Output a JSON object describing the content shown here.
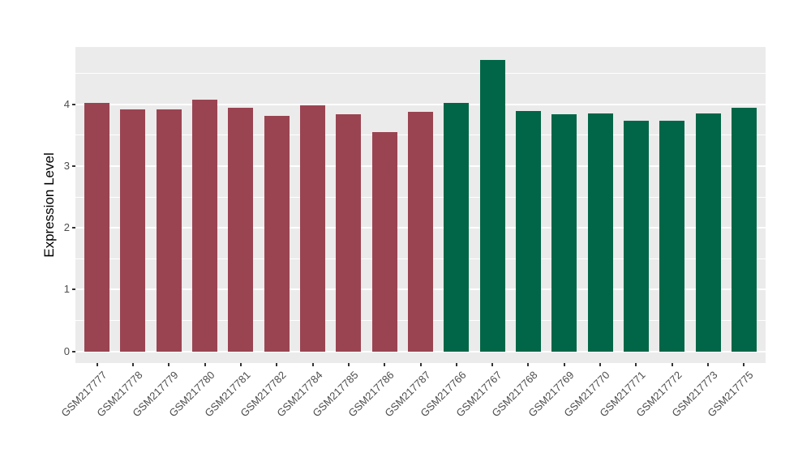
{
  "chart_data": {
    "type": "bar",
    "title": "",
    "xlabel": "",
    "ylabel": "Expression Level",
    "categories": [
      "GSM217777",
      "GSM217778",
      "GSM217779",
      "GSM217780",
      "GSM217781",
      "GSM217782",
      "GSM217784",
      "GSM217785",
      "GSM217786",
      "GSM217787",
      "GSM217766",
      "GSM217767",
      "GSM217768",
      "GSM217769",
      "GSM217770",
      "GSM217771",
      "GSM217772",
      "GSM217773",
      "GSM217775"
    ],
    "values": [
      4.02,
      3.92,
      3.92,
      4.08,
      3.94,
      3.81,
      3.99,
      3.84,
      3.55,
      3.88,
      4.02,
      4.72,
      3.89,
      3.84,
      3.86,
      3.74,
      3.73,
      3.86,
      3.94
    ],
    "bar_groups": [
      "group1",
      "group1",
      "group1",
      "group1",
      "group1",
      "group1",
      "group1",
      "group1",
      "group1",
      "group1",
      "group2",
      "group2",
      "group2",
      "group2",
      "group2",
      "group2",
      "group2",
      "group2",
      "group2"
    ],
    "group_colors": {
      "group1": "#9A4452",
      "group2": "#006647"
    },
    "ylim": [
      -0.19,
      4.93
    ],
    "yticks": [
      "0",
      "1",
      "2",
      "3",
      "4"
    ],
    "ytick_values": [
      0,
      1,
      2,
      3,
      4
    ],
    "minor_ytick_values": [
      0.5,
      1.5,
      2.5,
      3.5,
      4.5
    ],
    "grid": true,
    "legend": "none",
    "bar_width_fraction": 0.7,
    "x_tick_rotation_deg": 45,
    "panel_background": "#EBEBEB",
    "gridline_color": "#FFFFFF",
    "axis_text_color": "#4D4D4D",
    "axis_title_color": "#000000"
  }
}
